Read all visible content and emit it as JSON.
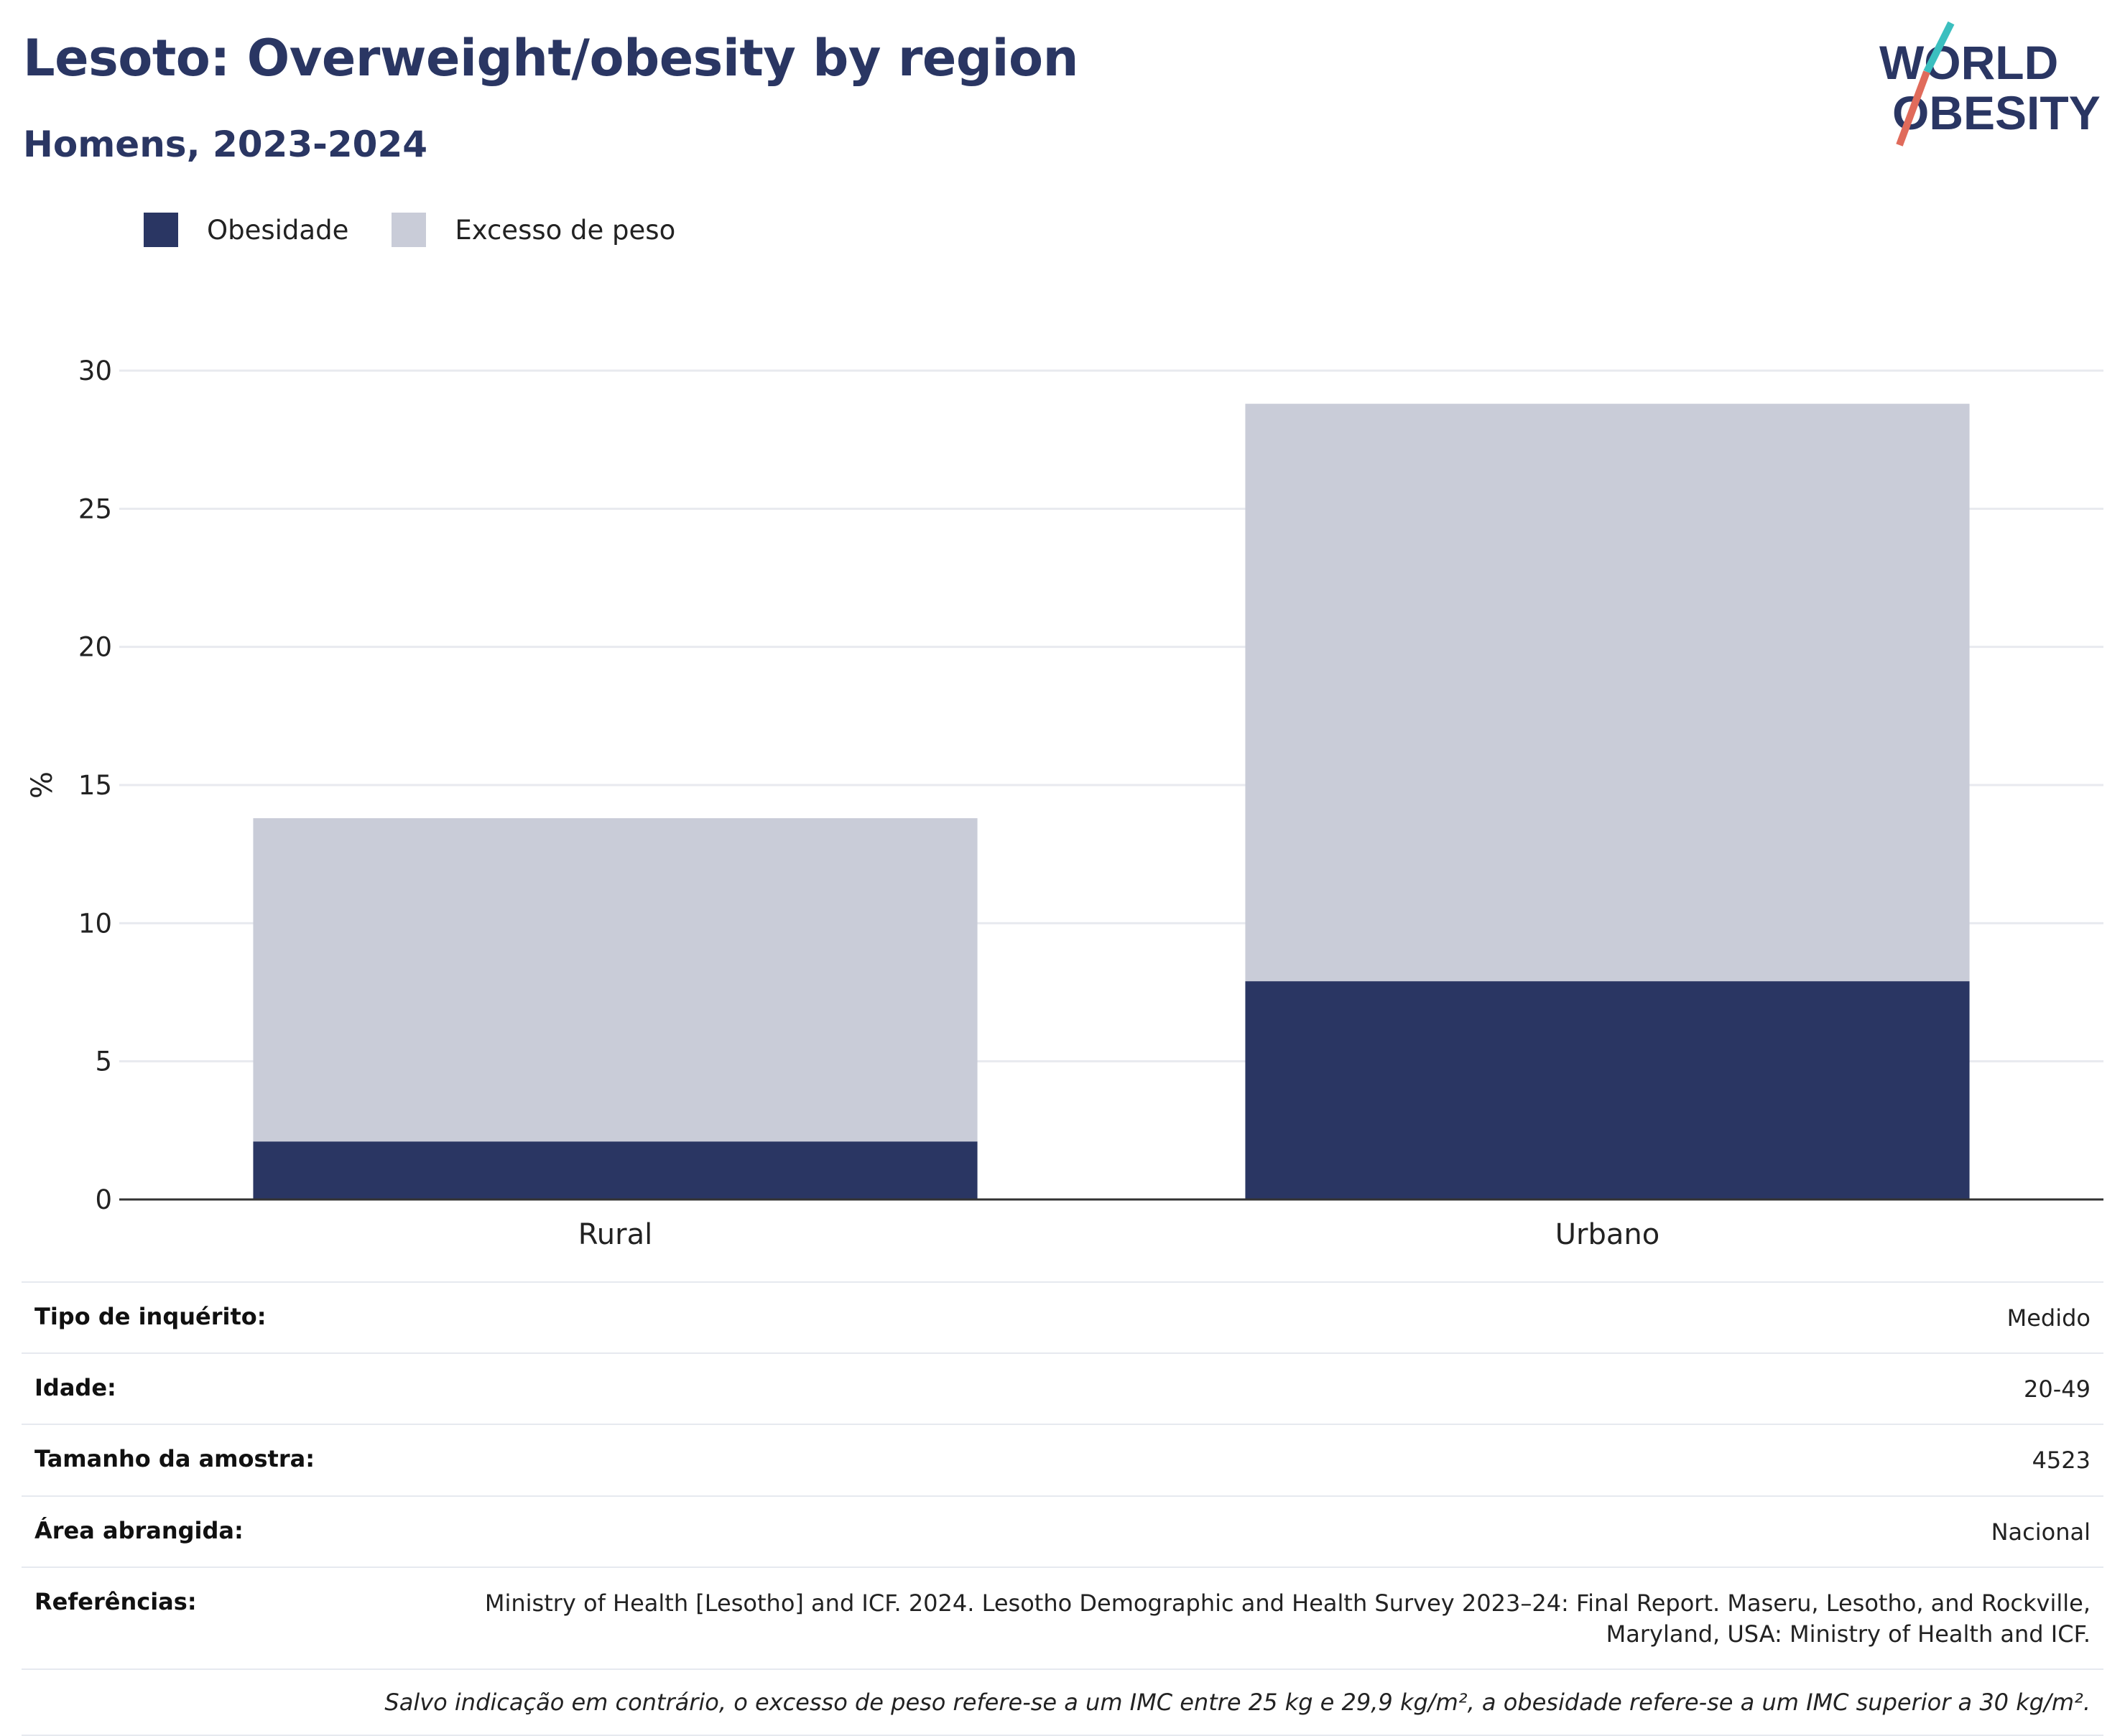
{
  "title": "Lesoto: Overweight/obesity by region",
  "subtitle": "Homens, 2023-2024",
  "logo": {
    "line1": "WORLD",
    "line2": "OBESITY",
    "accent_colors": [
      "#3bbfbf",
      "#e06b5b"
    ]
  },
  "legend": [
    {
      "label": "Obesidade",
      "color": "#2a3663"
    },
    {
      "label": "Excesso de peso",
      "color": "#c9ccd8"
    }
  ],
  "chart_data": {
    "type": "bar",
    "stacked": true,
    "categories": [
      "Rural",
      "Urbano"
    ],
    "series": [
      {
        "name": "Obesidade",
        "values": [
          2.1,
          7.9
        ],
        "color": "#2a3663"
      },
      {
        "name": "Excesso de peso",
        "values": [
          11.7,
          20.9
        ],
        "color": "#c9ccd8"
      }
    ],
    "ylabel": "%",
    "ylim": [
      0,
      30
    ],
    "yticks": [
      0,
      5,
      10,
      15,
      20,
      25,
      30
    ],
    "grid": true,
    "legend_position": "top-left"
  },
  "info": {
    "rows": [
      {
        "key": "Tipo de inquérito:",
        "value": "Medido"
      },
      {
        "key": "Idade:",
        "value": "20-49"
      },
      {
        "key": "Tamanho da amostra:",
        "value": "4523"
      },
      {
        "key": "Área abrangida:",
        "value": "Nacional"
      }
    ],
    "ref_key": "Referências:",
    "ref_value": "Ministry of Health [Lesotho] and ICF. 2024. Lesotho Demographic and Health Survey 2023–24: Final Report. Maseru, Lesotho, and Rockville, Maryland, USA: Ministry of Health and ICF.",
    "note": "Salvo indicação em contrário, o excesso de peso refere-se a um IMC entre 25 kg e 29,9 kg/m², a obesidade refere-se a um IMC superior a 30 kg/m²."
  }
}
